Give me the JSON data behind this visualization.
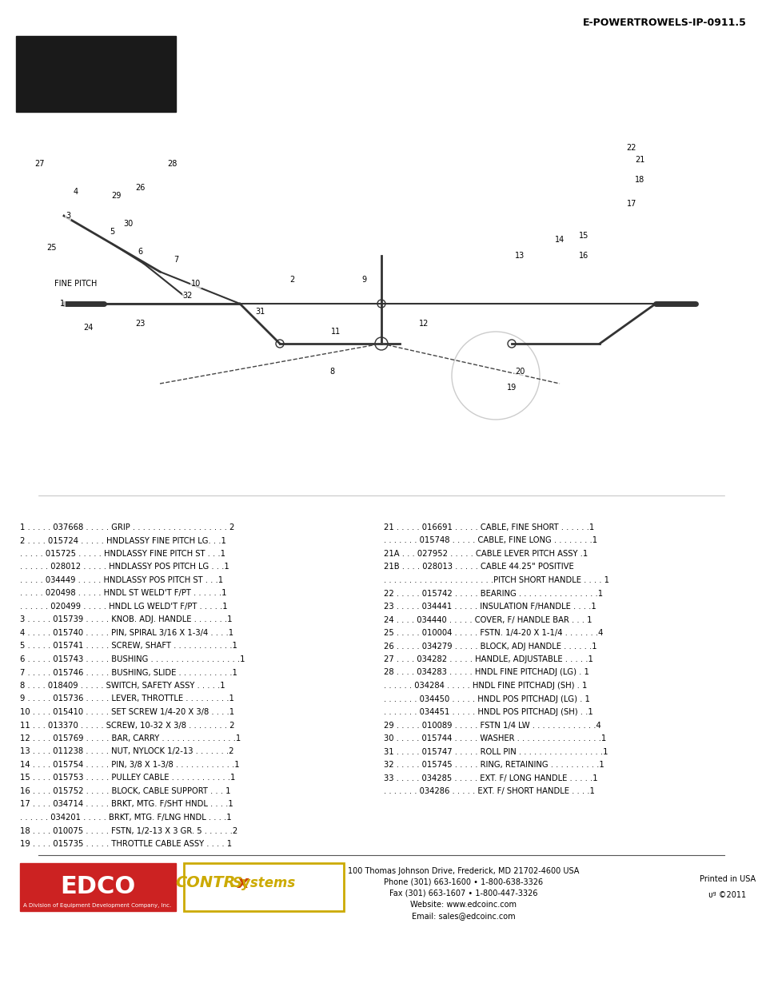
{
  "header_text": "E-POWERTROWELS-IP-0911.5",
  "parts_list_left": [
    [
      "1 . . . . . 037668 . . . . . GRIP . . . . . . . . . . . . . . . . . . . 2"
    ],
    [
      "2 . . . . 015724 . . . . . HNDLASSY FINE PITCH LG. . .1"
    ],
    [
      ". . . . . 015725 . . . . . HNDLASSY FINE PITCH ST . . .1"
    ],
    [
      ". . . . . . 028012 . . . . . HNDLASSY POS PITCH LG . . .1"
    ],
    [
      ". . . . . 034449 . . . . . HNDLASSY POS PITCH ST . . .1"
    ],
    [
      ". . . . . 020498 . . . . . HNDL ST WELD'T F/PT . . . . . .1"
    ],
    [
      ". . . . . . 020499 . . . . . HNDL LG WELD'T F/PT . . . . .1"
    ],
    [
      "3 . . . . . 015739 . . . . . KNOB. ADJ. HANDLE . . . . . . .1"
    ],
    [
      "4 . . . . . 015740 . . . . . PIN, SPIRAL 3/16 X 1-3/4 . . . .1"
    ],
    [
      "5 . . . . . 015741 . . . . . SCREW, SHAFT . . . . . . . . . . . .1"
    ],
    [
      "6 . . . . . 015743 . . . . . BUSHING . . . . . . . . . . . . . . . . . .1"
    ],
    [
      "7 . . . . . 015746 . . . . . BUSHING, SLIDE . . . . . . . . . . .1"
    ],
    [
      "8 . . . . 018409 . . . . . SWITCH, SAFETY ASSY . . . . .1"
    ],
    [
      "9 . . . . . 015736 . . . . . LEVER, THROTTLE . . . . . . . . .1"
    ],
    [
      "10 . . . . 015410 . . . . . SET SCREW 1/4-20 X 3/8 . . . .1"
    ],
    [
      "11 . . . 013370 . . . . . SCREW, 10-32 X 3/8 . . . . . . . . 2"
    ],
    [
      "12 . . . . 015769 . . . . . BAR, CARRY . . . . . . . . . . . . . . .1"
    ],
    [
      "13 . . . . 011238 . . . . . NUT, NYLOCK 1/2-13 . . . . . . .2"
    ],
    [
      "14 . . . . 015754 . . . . . PIN, 3/8 X 1-3/8 . . . . . . . . . . . .1"
    ],
    [
      "15 . . . . 015753 . . . . . PULLEY CABLE . . . . . . . . . . . .1"
    ],
    [
      "16 . . . . 015752 . . . . . BLOCK, CABLE SUPPORT . . . 1"
    ],
    [
      "17 . . . . 034714 . . . . . BRKT, MTG. F/SHT HNDL . . . .1"
    ],
    [
      ". . . . . . 034201 . . . . . BRKT, MTG. F/LNG HNDL . . . .1"
    ],
    [
      "18 . . . . 010075 . . . . . FSTN, 1/2-13 X 3 GR. 5 . . . . . .2"
    ],
    [
      "19 . . . . 015735 . . . . . THROTTLE CABLE ASSY . . . . 1"
    ]
  ],
  "parts_list_right": [
    [
      "21 . . . . . 016691 . . . . . CABLE, FINE SHORT . . . . . .1"
    ],
    [
      ". . . . . . . 015748 . . . . . CABLE, FINE LONG . . . . . . . .1"
    ],
    [
      "21A . . . 027952 . . . . . CABLE LEVER PITCH ASSY .1"
    ],
    [
      "21B . . . . 028013 . . . . . CABLE 44.25\" POSITIVE"
    ],
    [
      ". . . . . . . . . . . . . . . . . . . . . .PITCH SHORT HANDLE . . . . 1"
    ],
    [
      "22 . . . . . 015742 . . . . . BEARING . . . . . . . . . . . . . . . .1"
    ],
    [
      "23 . . . . . 034441 . . . . . INSULATION F/HANDLE . . . .1"
    ],
    [
      "24 . . . . 034440 . . . . . COVER, F/ HANDLE BAR . . . 1"
    ],
    [
      "25 . . . . . 010004 . . . . . FSTN. 1/4-20 X 1-1/4 . . . . . . .4"
    ],
    [
      "26 . . . . . 034279 . . . . . BLOCK, ADJ HANDLE . . . . . .1"
    ],
    [
      "27 . . . . 034282 . . . . . HANDLE, ADJUSTABLE . . . . .1"
    ],
    [
      "28 . . . . 034283 . . . . . HNDL FINE PITCHADJ (LG) . 1"
    ],
    [
      ". . . . . . 034284 . . . . . HNDL FINE PITCHADJ (SH) . 1"
    ],
    [
      ". . . . . . . 034450 . . . . . HNDL POS PITCHADJ (LG) . 1"
    ],
    [
      ". . . . . . . 034451 . . . . . HNDL POS PITCHADJ (SH) . .1"
    ],
    [
      "29 . . . . . 010089 . . . . . FSTN 1/4 LW . . . . . . . . . . . . .4"
    ],
    [
      "30 . . . . . 015744 . . . . . WASHER . . . . . . . . . . . . . . . . .1"
    ],
    [
      "31 . . . . . 015747 . . . . . ROLL PIN . . . . . . . . . . . . . . . . .1"
    ],
    [
      "32 . . . . . 015745 . . . . . RING, RETAINING . . . . . . . . . .1"
    ],
    [
      "33 . . . . . 034285 . . . . . EXT. F/ LONG HANDLE . . . . .1"
    ],
    [
      ". . . . . . . 034286 . . . . . EXT. F/ SHORT HANDLE . . . .1"
    ]
  ],
  "footer_address": "100 Thomas Johnson Drive, Frederick, MD 21702-4600 USA\nPhone (301) 663-1600 • 1-800-638-3326\nFax (301) 663-1607 • 1-800-447-3326\nWebsite: www.edcoinc.com\nEmail: sales@edcoinc.com",
  "footer_right": "Printed in USA\nᴜᵍ ©2011",
  "bg_color": "#ffffff",
  "text_color": "#000000",
  "header_color": "#000000"
}
